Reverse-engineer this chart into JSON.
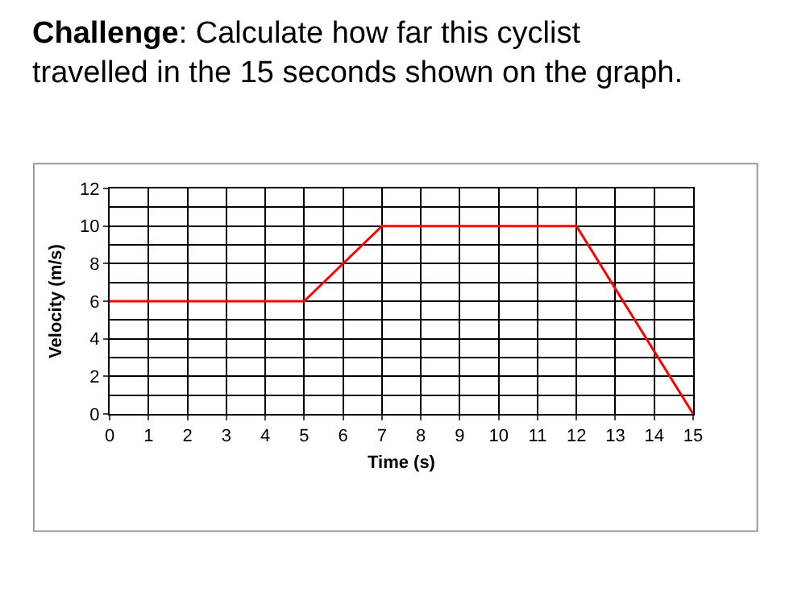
{
  "chart_data": {
    "type": "line",
    "title": "Challenge: Calculate how far this cyclist travelled in the 15 seconds shown on the graph.",
    "xlabel": "Time (s)",
    "ylabel": "Velocity (m/s)",
    "x": [
      0,
      5,
      7,
      12,
      15
    ],
    "series": [
      {
        "color": "#ff0000",
        "values": [
          6,
          6,
          10,
          10,
          0
        ]
      }
    ],
    "xlim": [
      0,
      15
    ],
    "xticks": [
      0,
      1,
      2,
      3,
      4,
      5,
      6,
      7,
      8,
      9,
      10,
      11,
      12,
      13,
      14,
      15
    ],
    "ylim": [
      0,
      12
    ],
    "yticks": [
      0,
      2,
      4,
      6,
      8,
      10,
      12
    ],
    "grid": true,
    "legend": false,
    "marker": "none",
    "line_style": "solid"
  }
}
